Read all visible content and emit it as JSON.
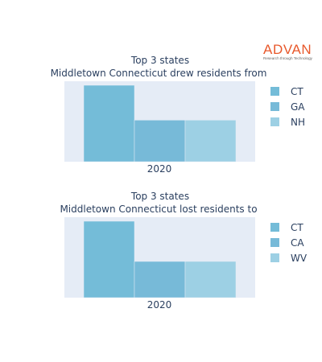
{
  "logo": {
    "brand": "ADVAN",
    "tagline": "Research through Technology",
    "color": "#e8582b"
  },
  "plot_bg": "#e5ecf6",
  "chart_data": [
    {
      "type": "bar",
      "title": "Top 3 states",
      "subtitle": "Middletown Connecticut drew residents from",
      "categories": [
        "2020"
      ],
      "series": [
        {
          "name": "CT",
          "values": [
            3
          ],
          "color": "#74bcd8"
        },
        {
          "name": "GA",
          "values": [
            1.7
          ],
          "color": "#77bad8"
        },
        {
          "name": "NH",
          "values": [
            1.7
          ],
          "color": "#9dd0e4"
        }
      ],
      "ylim": [
        0,
        3
      ],
      "grid": false,
      "legend": "right"
    },
    {
      "type": "bar",
      "title": "Top 3 states",
      "subtitle": "Middletown Connecticut lost residents to",
      "categories": [
        "2020"
      ],
      "series": [
        {
          "name": "CT",
          "values": [
            3
          ],
          "color": "#74bcd8"
        },
        {
          "name": "CA",
          "values": [
            1.5
          ],
          "color": "#77bad8"
        },
        {
          "name": "WV",
          "values": [
            1.5
          ],
          "color": "#9dd0e4"
        }
      ],
      "ylim": [
        0,
        3
      ],
      "grid": false,
      "legend": "right"
    }
  ]
}
